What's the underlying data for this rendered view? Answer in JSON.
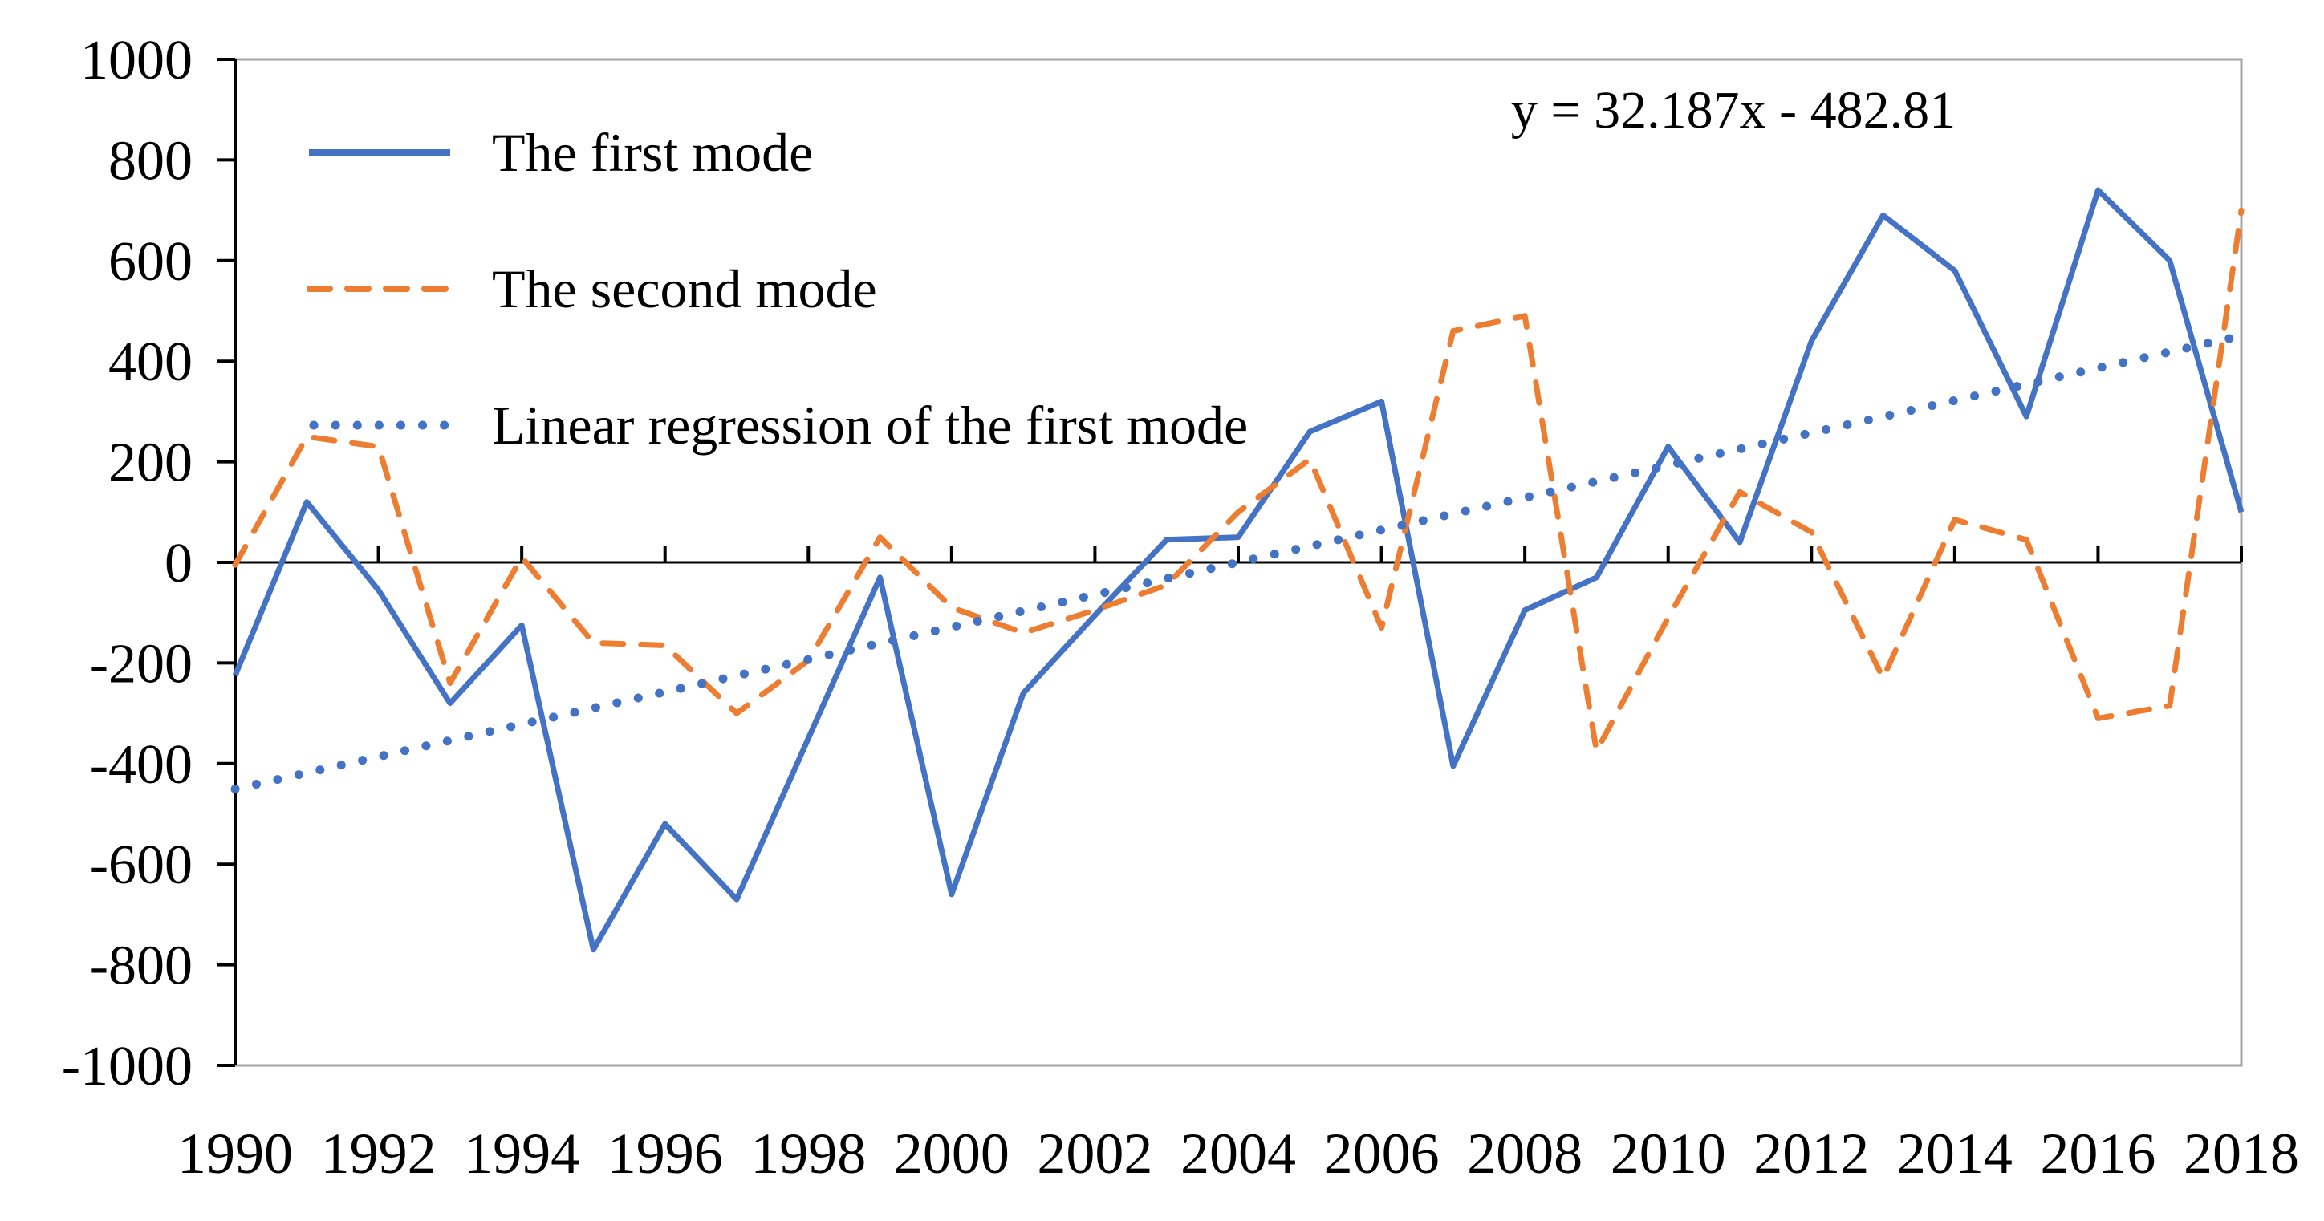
{
  "chart_data": {
    "type": "line",
    "title": "",
    "xlabel": "",
    "ylabel": "",
    "x": [
      1990,
      1991,
      1992,
      1993,
      1994,
      1995,
      1996,
      1997,
      1998,
      1999,
      2000,
      2001,
      2002,
      2003,
      2004,
      2005,
      2006,
      2007,
      2008,
      2009,
      2010,
      2011,
      2012,
      2013,
      2014,
      2015,
      2016,
      2017,
      2018
    ],
    "series": [
      {
        "name": "The first mode",
        "style": "solid",
        "color": "#4472C4",
        "values": [
          -225,
          120,
          -55,
          -280,
          -125,
          -770,
          -520,
          -670,
          -350,
          -30,
          -660,
          -260,
          -105,
          45,
          50,
          260,
          320,
          -405,
          -95,
          -30,
          230,
          40,
          440,
          690,
          580,
          290,
          740,
          600,
          100
        ]
      },
      {
        "name": "The second mode",
        "style": "dashed",
        "color": "#ED7D31",
        "values": [
          -5,
          250,
          230,
          -240,
          10,
          -160,
          -165,
          -300,
          -195,
          50,
          -90,
          -140,
          -95,
          -45,
          100,
          205,
          -130,
          460,
          490,
          -375,
          -110,
          140,
          60,
          -230,
          85,
          45,
          -310,
          -285,
          700
        ]
      },
      {
        "name": "Linear regression of the first mode",
        "style": "dotted",
        "color": "#4472C4",
        "trendline": true,
        "slope": 32.187,
        "intercept": -482.81,
        "x_index_range": [
          1,
          29
        ]
      }
    ],
    "annotation": "y = 32.187x  - 482.81",
    "ylim": [
      -1000,
      1000
    ],
    "y_tick_step": 200,
    "y_tick_labels": [
      "1000",
      "800",
      "600",
      "400",
      "200",
      "0",
      "-200",
      "-400",
      "-600",
      "-800",
      "-1000"
    ],
    "x_tick_labels": [
      "1990",
      "1992",
      "1994",
      "1996",
      "1998",
      "2000",
      "2002",
      "2004",
      "2006",
      "2008",
      "2010",
      "2012",
      "2014",
      "2016",
      "2018"
    ],
    "grid": false,
    "legend_position": "top-left",
    "axis_color": "#000000",
    "frame_color": "#A6A6A6"
  }
}
